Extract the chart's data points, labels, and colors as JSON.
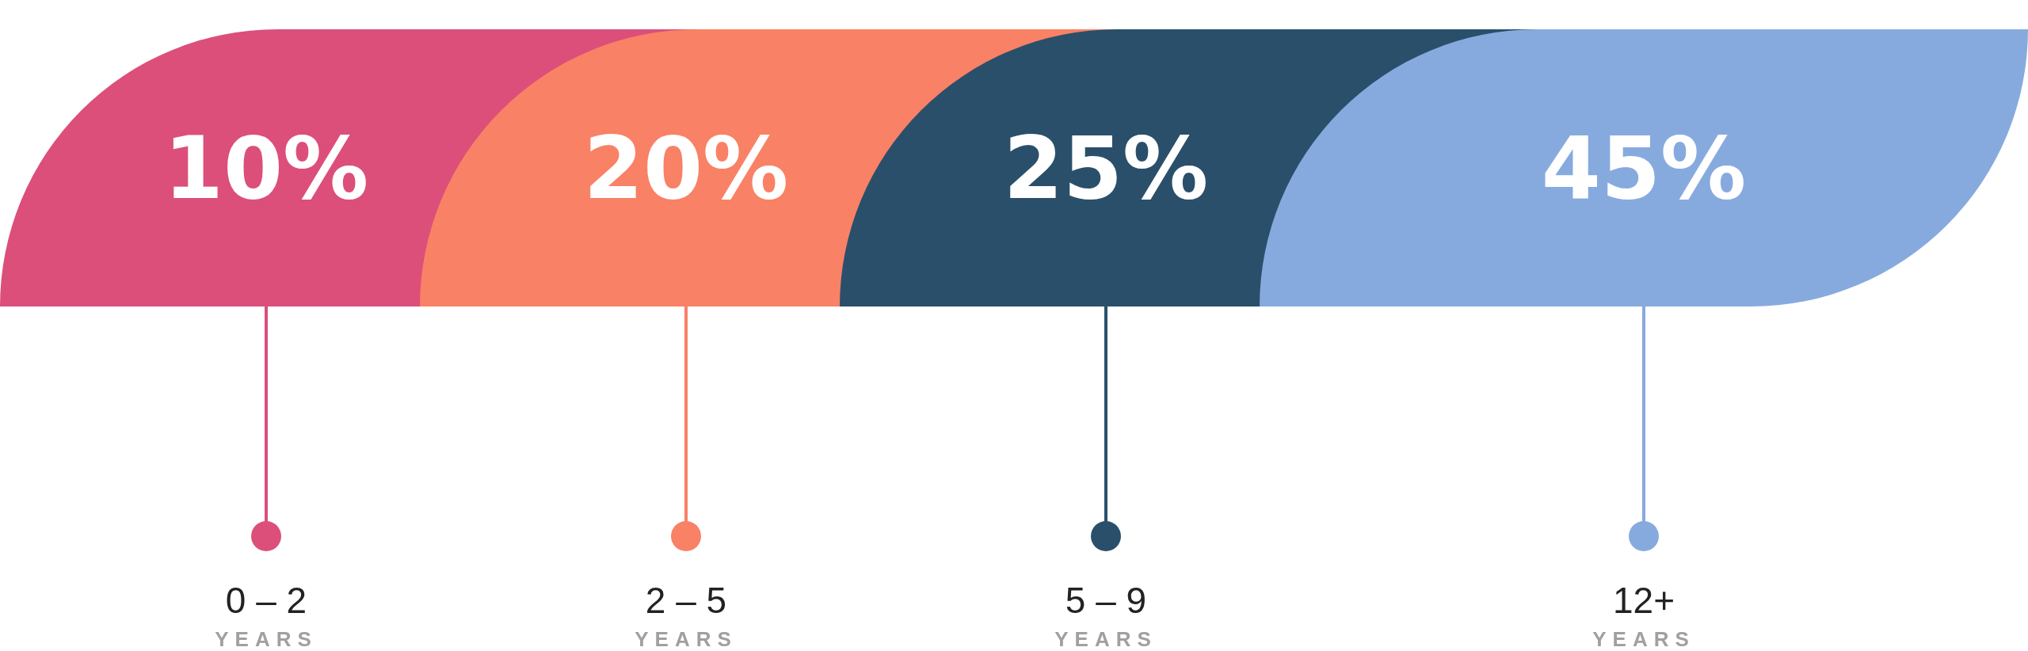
{
  "chart_data": {
    "type": "other",
    "categories": [
      "0 – 2",
      "2 – 5",
      "5 – 9",
      "12+"
    ],
    "values": [
      10,
      20,
      25,
      45
    ],
    "value_labels": [
      "10%",
      "20%",
      "25%",
      "45%"
    ],
    "colors": [
      "#db4f7a",
      "#f98166",
      "#2a4f6a",
      "#87aade"
    ],
    "xlabel": "YEARS"
  }
}
